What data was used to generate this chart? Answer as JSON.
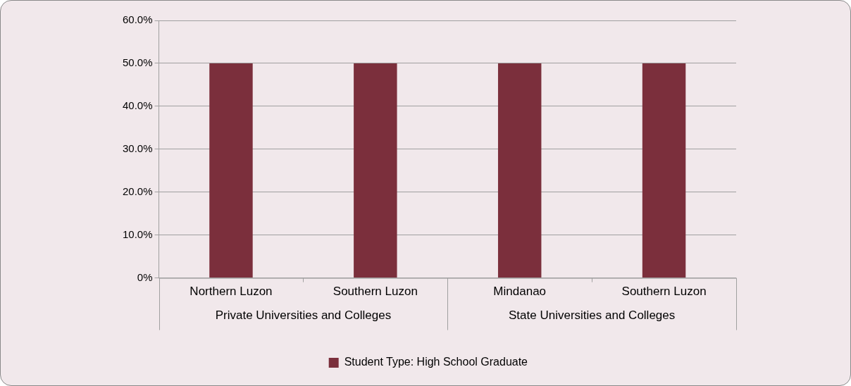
{
  "chart_data": {
    "type": "bar",
    "categories": [
      "Northern Luzon",
      "Southern Luzon",
      "Mindanao",
      "Southern Luzon"
    ],
    "series": [
      {
        "name": "Student Type: High School Graduate",
        "color": "#7b2f3c",
        "values": [
          50,
          50,
          50,
          50
        ]
      }
    ],
    "ylim": [
      0,
      60
    ],
    "yticks": [
      {
        "value": 0,
        "label": "0%"
      },
      {
        "value": 10,
        "label": "10.0%"
      },
      {
        "value": 20,
        "label": "20.0%"
      },
      {
        "value": 30,
        "label": "30.0%"
      },
      {
        "value": 40,
        "label": "40.0%"
      },
      {
        "value": 50,
        "label": "50.0%"
      },
      {
        "value": 60,
        "label": "60.0%"
      }
    ],
    "grid": "y",
    "legend": "bottom",
    "annotations": [
      "Private Universities and Colleges",
      "State Universities and Colleges"
    ]
  }
}
